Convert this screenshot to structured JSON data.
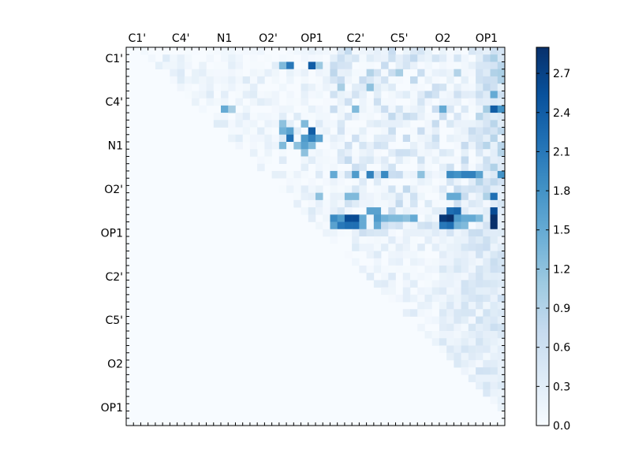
{
  "chart_data": {
    "type": "heatmap",
    "title": "",
    "xlabel": "",
    "ylabel": "",
    "n": 52,
    "x_tick_labels": [
      "C1'",
      "C4'",
      "N1",
      "O2'",
      "OP1",
      "C2'",
      "C5'",
      "O2",
      "OP1"
    ],
    "y_tick_labels": [
      "C1'",
      "C4'",
      "N1",
      "O2'",
      "OP1",
      "C2'",
      "C5'",
      "O2",
      "OP1"
    ],
    "colorbar": {
      "min": 0.0,
      "max": 2.9,
      "ticks": [
        "0.0",
        "0.3",
        "0.6",
        "0.9",
        "1.2",
        "1.5",
        "1.8",
        "2.1",
        "2.4",
        "2.7"
      ],
      "colormap": "Blues",
      "colors": [
        "#f7fbff",
        "#deebf7",
        "#c6dbef",
        "#9ecae1",
        "#6baed6",
        "#4292c6",
        "#2171b5",
        "#08519c",
        "#08306b"
      ]
    },
    "highlights": [
      {
        "row": 2,
        "col": 22,
        "value": 2.1
      },
      {
        "row": 2,
        "col": 25,
        "value": 2.4
      },
      {
        "row": 2,
        "col": 21,
        "value": 1.3
      },
      {
        "row": 2,
        "col": 26,
        "value": 1.1
      },
      {
        "row": 3,
        "col": 28,
        "value": 0.8
      },
      {
        "row": 3,
        "col": 33,
        "value": 0.9
      },
      {
        "row": 3,
        "col": 37,
        "value": 1.0
      },
      {
        "row": 3,
        "col": 45,
        "value": 0.9
      },
      {
        "row": 5,
        "col": 29,
        "value": 1.0
      },
      {
        "row": 5,
        "col": 33,
        "value": 1.2
      },
      {
        "row": 6,
        "col": 50,
        "value": 1.5
      },
      {
        "row": 8,
        "col": 13,
        "value": 1.5
      },
      {
        "row": 8,
        "col": 14,
        "value": 1.0
      },
      {
        "row": 8,
        "col": 31,
        "value": 1.3
      },
      {
        "row": 8,
        "col": 43,
        "value": 1.5
      },
      {
        "row": 8,
        "col": 50,
        "value": 2.4
      },
      {
        "row": 8,
        "col": 51,
        "value": 1.8
      },
      {
        "row": 10,
        "col": 21,
        "value": 1.2
      },
      {
        "row": 10,
        "col": 24,
        "value": 1.3
      },
      {
        "row": 11,
        "col": 22,
        "value": 1.6
      },
      {
        "row": 11,
        "col": 25,
        "value": 2.4
      },
      {
        "row": 11,
        "col": 21,
        "value": 1.4
      },
      {
        "row": 12,
        "col": 22,
        "value": 2.2
      },
      {
        "row": 12,
        "col": 24,
        "value": 1.7
      },
      {
        "row": 12,
        "col": 25,
        "value": 2.0
      },
      {
        "row": 12,
        "col": 26,
        "value": 1.6
      },
      {
        "row": 13,
        "col": 21,
        "value": 1.3
      },
      {
        "row": 13,
        "col": 23,
        "value": 1.2
      },
      {
        "row": 13,
        "col": 24,
        "value": 1.6
      },
      {
        "row": 13,
        "col": 25,
        "value": 1.3
      },
      {
        "row": 14,
        "col": 24,
        "value": 1.2
      },
      {
        "row": 17,
        "col": 28,
        "value": 1.5
      },
      {
        "row": 17,
        "col": 31,
        "value": 1.7
      },
      {
        "row": 17,
        "col": 33,
        "value": 2.0
      },
      {
        "row": 17,
        "col": 35,
        "value": 1.9
      },
      {
        "row": 17,
        "col": 40,
        "value": 1.2
      },
      {
        "row": 17,
        "col": 44,
        "value": 1.9
      },
      {
        "row": 17,
        "col": 45,
        "value": 1.8
      },
      {
        "row": 17,
        "col": 46,
        "value": 2.0
      },
      {
        "row": 17,
        "col": 47,
        "value": 2.0
      },
      {
        "row": 17,
        "col": 48,
        "value": 1.6
      },
      {
        "row": 17,
        "col": 51,
        "value": 1.8
      },
      {
        "row": 20,
        "col": 26,
        "value": 1.2
      },
      {
        "row": 20,
        "col": 30,
        "value": 1.3
      },
      {
        "row": 20,
        "col": 31,
        "value": 1.3
      },
      {
        "row": 20,
        "col": 44,
        "value": 1.5
      },
      {
        "row": 20,
        "col": 45,
        "value": 1.5
      },
      {
        "row": 20,
        "col": 50,
        "value": 2.2
      },
      {
        "row": 22,
        "col": 33,
        "value": 1.6
      },
      {
        "row": 22,
        "col": 34,
        "value": 1.6
      },
      {
        "row": 22,
        "col": 44,
        "value": 2.2
      },
      {
        "row": 22,
        "col": 45,
        "value": 2.3
      },
      {
        "row": 22,
        "col": 50,
        "value": 2.6
      },
      {
        "row": 23,
        "col": 28,
        "value": 1.9
      },
      {
        "row": 23,
        "col": 29,
        "value": 1.7
      },
      {
        "row": 23,
        "col": 30,
        "value": 2.6
      },
      {
        "row": 23,
        "col": 31,
        "value": 2.6
      },
      {
        "row": 23,
        "col": 32,
        "value": 1.5
      },
      {
        "row": 23,
        "col": 34,
        "value": 1.7
      },
      {
        "row": 23,
        "col": 35,
        "value": 1.4
      },
      {
        "row": 23,
        "col": 36,
        "value": 1.3
      },
      {
        "row": 23,
        "col": 37,
        "value": 1.3
      },
      {
        "row": 23,
        "col": 38,
        "value": 1.2
      },
      {
        "row": 23,
        "col": 39,
        "value": 1.5
      },
      {
        "row": 23,
        "col": 43,
        "value": 2.8
      },
      {
        "row": 23,
        "col": 44,
        "value": 2.9
      },
      {
        "row": 23,
        "col": 45,
        "value": 1.7
      },
      {
        "row": 23,
        "col": 46,
        "value": 1.5
      },
      {
        "row": 23,
        "col": 47,
        "value": 1.5
      },
      {
        "row": 23,
        "col": 48,
        "value": 1.3
      },
      {
        "row": 23,
        "col": 50,
        "value": 2.9
      },
      {
        "row": 24,
        "col": 28,
        "value": 1.6
      },
      {
        "row": 24,
        "col": 29,
        "value": 2.1
      },
      {
        "row": 24,
        "col": 30,
        "value": 2.2
      },
      {
        "row": 24,
        "col": 31,
        "value": 2.2
      },
      {
        "row": 24,
        "col": 32,
        "value": 1.5
      },
      {
        "row": 24,
        "col": 34,
        "value": 1.5
      },
      {
        "row": 24,
        "col": 43,
        "value": 2.1
      },
      {
        "row": 24,
        "col": 44,
        "value": 2.2
      },
      {
        "row": 24,
        "col": 45,
        "value": 1.4
      },
      {
        "row": 24,
        "col": 46,
        "value": 1.3
      },
      {
        "row": 24,
        "col": 50,
        "value": 2.9
      }
    ]
  }
}
